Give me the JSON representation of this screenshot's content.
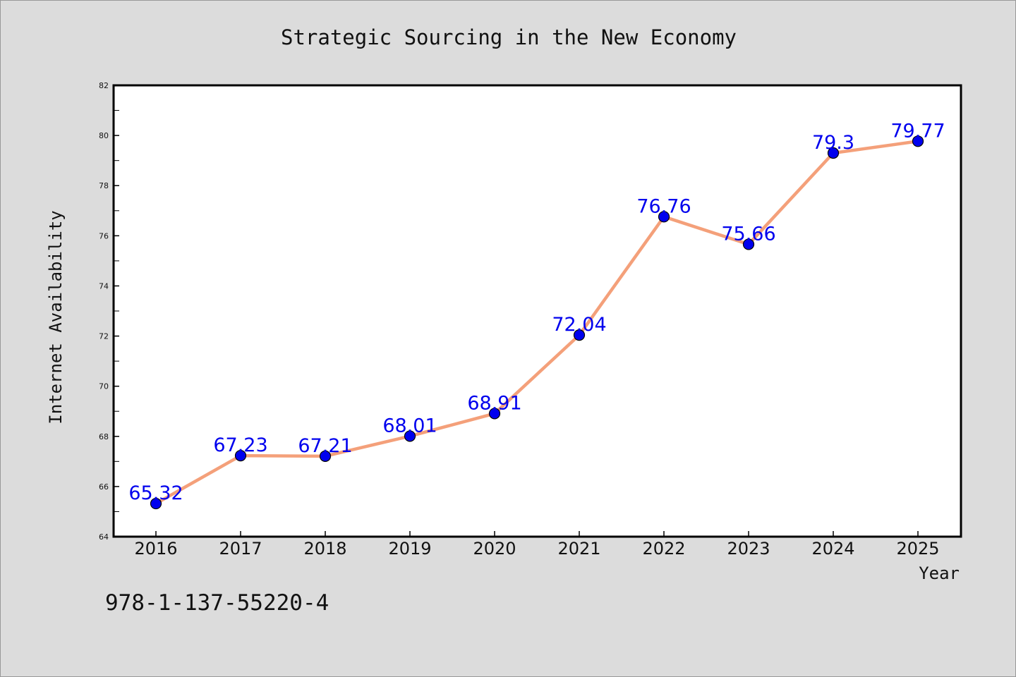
{
  "chart_data": {
    "type": "line",
    "title": "Strategic Sourcing in the New Economy",
    "xlabel": "Year",
    "ylabel": "Internet Availability",
    "categories": [
      "2016",
      "2017",
      "2018",
      "2019",
      "2020",
      "2021",
      "2022",
      "2023",
      "2024",
      "2025"
    ],
    "series": [
      {
        "values": [
          65.32,
          67.23,
          67.21,
          68.01,
          68.91,
          72.04,
          76.76,
          75.66,
          79.3,
          79.77
        ],
        "labels": [
          "65.32",
          "67.23",
          "67.21",
          "68.01",
          "68.91",
          "72.04",
          "76.76",
          "75.66",
          "79.3",
          "79.77"
        ],
        "line_color": "#f4a07a",
        "marker_color": "#0000ee"
      }
    ],
    "ylim": [
      64,
      82
    ],
    "yticks": [
      "64",
      "66",
      "68",
      "70",
      "72",
      "74",
      "76",
      "78",
      "80",
      "82"
    ],
    "grid": false,
    "legend": "none",
    "label_color": "#0000ee"
  },
  "footer_code": "978-1-137-55220-4"
}
